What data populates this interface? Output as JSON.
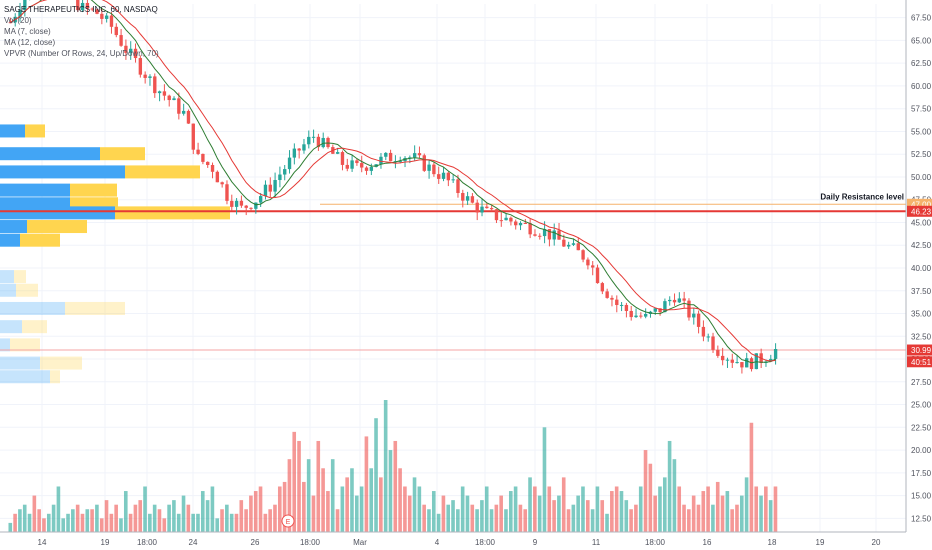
{
  "legend": {
    "title": "SAGE THERAPEUTICS INC, 60, NASDAQ",
    "vol": "Vol (20)",
    "ma7": "MA (7, close)",
    "ma12": "MA (12, close)",
    "vpvr": "VPVR (Number Of Rows, 24, Up/Down, 70)"
  },
  "annotation": "Daily Resistance level",
  "colors": {
    "up": "#26a69a",
    "down": "#ef5350",
    "ma_fast": "#2e7d32",
    "ma_slow": "#e53935",
    "vp_up": "#42a5f5",
    "vp_down": "#ffd54f",
    "resistance_line": "#e53935",
    "orange_line": "#f5b26b",
    "price_line": "#f4a5a5"
  },
  "chart_data": {
    "type": "candlestick",
    "x_ticks": [
      "14",
      "19",
      "18:00",
      "24",
      "26",
      "18:00",
      "Mar",
      "4",
      "18:00",
      "9",
      "11",
      "18:00",
      "16",
      "18",
      "19",
      "20"
    ],
    "y_ticks": [
      "67.50",
      "65.00",
      "62.50",
      "60.00",
      "57.50",
      "55.00",
      "52.50",
      "50.00",
      "47.50",
      "45.00",
      "42.50",
      "40.00",
      "37.50",
      "35.00",
      "32.50",
      "30.00",
      "27.50",
      "25.00",
      "22.50",
      "20.00",
      "17.50",
      "15.00",
      "12.50"
    ],
    "ylim": [
      11,
      69
    ],
    "price_labels": [
      {
        "value": 47.0,
        "text": "47.00",
        "color": "#f5b26b"
      },
      {
        "value": 46.23,
        "text": "46.23",
        "color": "#e53935"
      },
      {
        "value": 30.99,
        "text": "30.99",
        "color": "#e53935"
      },
      {
        "value": 29.7,
        "text": "40:51",
        "color": "#e53935"
      }
    ],
    "resistance": 46.23,
    "orange_level": 47.0,
    "last_price": 30.99,
    "price_path": [
      67,
      70,
      71,
      71.5,
      70,
      68.5,
      68,
      66.5,
      64,
      62,
      60,
      58.5,
      57,
      52,
      51,
      48,
      46.5,
      47.5,
      49,
      51,
      53,
      54.5,
      53,
      51.5,
      51,
      51.5,
      52,
      52.5,
      52,
      51,
      50,
      48.5,
      47,
      46,
      45.5,
      45,
      44.5,
      44,
      43,
      42,
      41,
      38,
      36,
      35,
      34.5,
      35.5,
      37,
      35,
      33,
      31,
      30,
      29.5,
      30,
      31
    ],
    "volume": [
      12,
      13,
      13.5,
      14,
      13,
      15,
      13.5,
      12.5,
      13,
      14,
      16,
      12.5,
      13,
      13.5,
      14,
      13,
      13.5,
      13.5,
      14,
      12.5,
      14.5,
      13,
      14,
      12.5,
      15.5,
      13,
      14,
      14.5,
      16,
      13,
      14,
      13.5,
      12.5,
      14,
      14.5,
      13,
      15,
      14,
      13,
      13,
      15.5,
      14.5,
      16,
      12.5,
      13.5,
      14,
      13,
      13,
      14.5,
      13.5,
      15,
      15.5,
      16,
      13,
      13.5,
      14,
      16,
      16.5,
      19,
      22,
      21,
      16.5,
      19,
      15,
      21,
      18,
      15.5,
      19,
      13.5,
      16,
      17,
      18,
      15,
      16,
      21.5,
      18,
      23.5,
      17,
      25.5,
      20,
      21,
      18,
      16,
      15,
      17,
      16,
      14,
      13.5,
      15.5,
      13,
      15,
      14,
      14.5,
      13.5,
      16,
      15,
      14,
      13.5,
      14.5,
      16,
      13.5,
      14,
      15,
      13.5,
      15.5,
      16,
      14,
      13.5,
      17,
      16,
      15,
      22.5,
      16,
      14.5,
      15,
      17,
      13.5,
      14,
      15,
      16,
      14.5,
      13.5,
      16,
      14.5,
      13,
      15.5,
      16,
      15.5,
      14.5,
      13.5,
      14,
      16,
      20,
      18.5,
      15,
      16,
      17,
      21,
      19,
      16,
      14,
      13.5,
      15,
      14,
      15.5,
      16,
      14,
      16.5,
      15,
      15.5,
      13.5,
      14,
      15,
      17,
      23,
      16,
      15,
      16,
      14.5,
      16
    ],
    "volume_profile": [
      {
        "price": 55,
        "up": 25,
        "down": 20
      },
      {
        "price": 52.5,
        "up": 100,
        "down": 45
      },
      {
        "price": 50.5,
        "up": 125,
        "down": 75
      },
      {
        "price": 48.5,
        "up": 70,
        "down": 47
      },
      {
        "price": 47,
        "up": 70,
        "down": 48
      },
      {
        "price": 46,
        "up": 115,
        "down": 115
      },
      {
        "price": 44.5,
        "up": 27,
        "down": 60
      },
      {
        "price": 43,
        "up": 20,
        "down": 40
      },
      {
        "price": 39,
        "up": 14,
        "down": 12
      },
      {
        "price": 37.5,
        "up": 16,
        "down": 22
      },
      {
        "price": 35.5,
        "up": 65,
        "down": 60
      },
      {
        "price": 33.5,
        "up": 22,
        "down": 25
      },
      {
        "price": 31.5,
        "up": 10,
        "down": 30
      },
      {
        "price": 29.5,
        "up": 40,
        "down": 42
      },
      {
        "price": 28,
        "up": 50,
        "down": 10
      }
    ]
  }
}
